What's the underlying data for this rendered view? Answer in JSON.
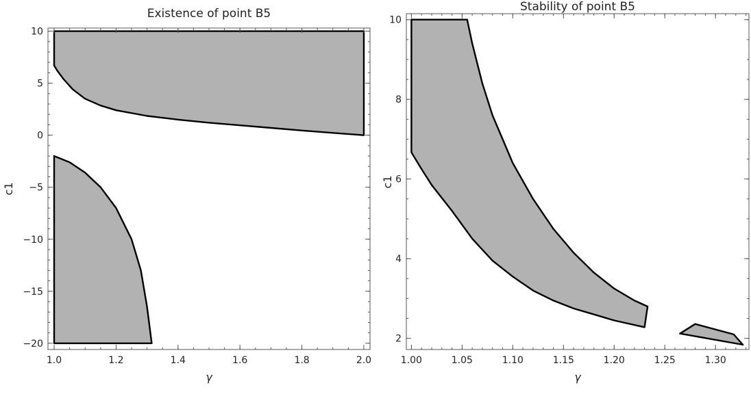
{
  "chart_data": [
    {
      "type": "area",
      "title": "Existence of point B5",
      "xlabel": "γ",
      "ylabel": "c1",
      "xlim": [
        0.98,
        2.02
      ],
      "ylim": [
        -20.6,
        10.3
      ],
      "xticks": [
        1.0,
        1.2,
        1.4,
        1.6,
        1.8,
        2.0
      ],
      "xtick_labels": [
        "1.0",
        "1.2",
        "1.4",
        "1.6",
        "1.8",
        "2.0"
      ],
      "yticks": [
        -20,
        -15,
        -10,
        -5,
        0,
        5,
        10
      ],
      "ytick_labels": [
        "−20",
        "−15",
        "−10",
        "−5",
        "0",
        "5",
        "10"
      ],
      "x_minor_step": 0.05,
      "y_minor_step": 1,
      "grid": false,
      "fill_color": "#b2b2b2",
      "edge_color": "#000000",
      "regions": [
        {
          "polygon": [
            [
              1.0,
              10.0
            ],
            [
              2.0,
              10.0
            ],
            [
              2.0,
              0.0
            ],
            [
              1.9,
              0.22
            ],
            [
              1.8,
              0.45
            ],
            [
              1.7,
              0.7
            ],
            [
              1.6,
              0.95
            ],
            [
              1.5,
              1.2
            ],
            [
              1.4,
              1.5
            ],
            [
              1.3,
              1.85
            ],
            [
              1.2,
              2.4
            ],
            [
              1.15,
              2.85
            ],
            [
              1.1,
              3.5
            ],
            [
              1.06,
              4.4
            ],
            [
              1.03,
              5.4
            ],
            [
              1.01,
              6.2
            ],
            [
              1.0,
              6.7
            ]
          ]
        },
        {
          "polygon": [
            [
              1.0,
              -2.0
            ],
            [
              1.05,
              -2.6
            ],
            [
              1.1,
              -3.6
            ],
            [
              1.15,
              -5.0
            ],
            [
              1.2,
              -7.0
            ],
            [
              1.25,
              -10.0
            ],
            [
              1.28,
              -13.0
            ],
            [
              1.3,
              -16.5
            ],
            [
              1.315,
              -20.0
            ],
            [
              1.0,
              -20.0
            ]
          ]
        }
      ]
    },
    {
      "type": "area",
      "title": "Stability of point B5",
      "xlabel": "γ",
      "ylabel": "c1",
      "xlim": [
        0.995,
        1.333
      ],
      "ylim": [
        1.72,
        10.15
      ],
      "xticks": [
        1.0,
        1.05,
        1.1,
        1.15,
        1.2,
        1.25,
        1.3
      ],
      "xtick_labels": [
        "1.00",
        "1.05",
        "1.10",
        "1.15",
        "1.20",
        "1.25",
        "1.30"
      ],
      "yticks": [
        2,
        4,
        6,
        8,
        10
      ],
      "ytick_labels": [
        "2",
        "4",
        "6",
        "8",
        "10"
      ],
      "x_minor_step": 0.01,
      "y_minor_step": 0.5,
      "grid": false,
      "fill_color": "#b2b2b2",
      "edge_color": "#000000",
      "regions": [
        {
          "polygon": [
            [
              1.0,
              10.0
            ],
            [
              1.055,
              10.0
            ],
            [
              1.06,
              9.4
            ],
            [
              1.07,
              8.4
            ],
            [
              1.08,
              7.6
            ],
            [
              1.1,
              6.4
            ],
            [
              1.12,
              5.5
            ],
            [
              1.14,
              4.75
            ],
            [
              1.16,
              4.15
            ],
            [
              1.18,
              3.65
            ],
            [
              1.2,
              3.25
            ],
            [
              1.22,
              2.95
            ],
            [
              1.233,
              2.8
            ],
            [
              1.23,
              2.28
            ],
            [
              1.2,
              2.45
            ],
            [
              1.18,
              2.6
            ],
            [
              1.16,
              2.75
            ],
            [
              1.14,
              2.95
            ],
            [
              1.12,
              3.2
            ],
            [
              1.1,
              3.55
            ],
            [
              1.08,
              3.95
            ],
            [
              1.06,
              4.5
            ],
            [
              1.04,
              5.2
            ],
            [
              1.02,
              5.85
            ],
            [
              1.01,
              6.25
            ],
            [
              1.0,
              6.67
            ]
          ]
        },
        {
          "polygon": [
            [
              1.265,
              2.12
            ],
            [
              1.28,
              2.36
            ],
            [
              1.318,
              2.1
            ],
            [
              1.327,
              1.84
            ]
          ]
        }
      ]
    }
  ]
}
